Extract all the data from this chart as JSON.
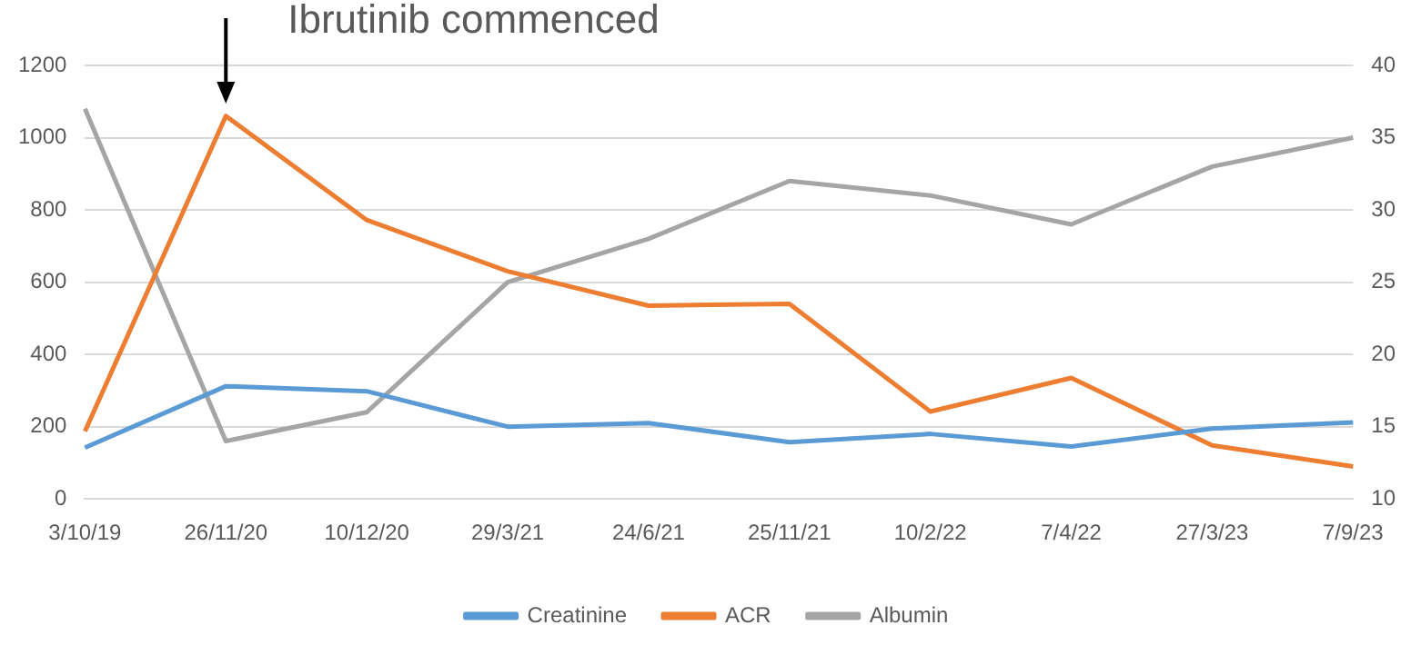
{
  "chart_data": {
    "type": "line",
    "categories": [
      "3/10/19",
      "26/11/20",
      "10/12/20",
      "29/3/21",
      "24/6/21",
      "25/11/21",
      "10/2/22",
      "7/4/22",
      "27/3/23",
      "7/9/23"
    ],
    "series": [
      {
        "name": "Creatinine",
        "color": "#5b9bd5",
        "values": [
          142,
          312,
          298,
          200,
          210,
          157,
          180,
          145,
          195,
          212
        ]
      },
      {
        "name": "ACR",
        "color": "#ed7d31",
        "values": [
          187,
          1060,
          772,
          630,
          535,
          540,
          242,
          335,
          148,
          90
        ]
      },
      {
        "name": "Albumin",
        "color": "#a5a5a5",
        "axis": "y2",
        "values": [
          37,
          14,
          16,
          25,
          28,
          32,
          31,
          29,
          33,
          35
        ]
      }
    ],
    "ylim": [
      0,
      1200
    ],
    "yticks": [
      0,
      200,
      400,
      600,
      800,
      1000,
      1200
    ],
    "y2lim": [
      10,
      40
    ],
    "y2ticks": [
      10,
      15,
      20,
      25,
      30,
      35,
      40
    ],
    "grid": "y",
    "legend": "bottom",
    "marker": "none",
    "line_style": "solid",
    "annotations": [
      "Ibrutinib commenced"
    ]
  }
}
